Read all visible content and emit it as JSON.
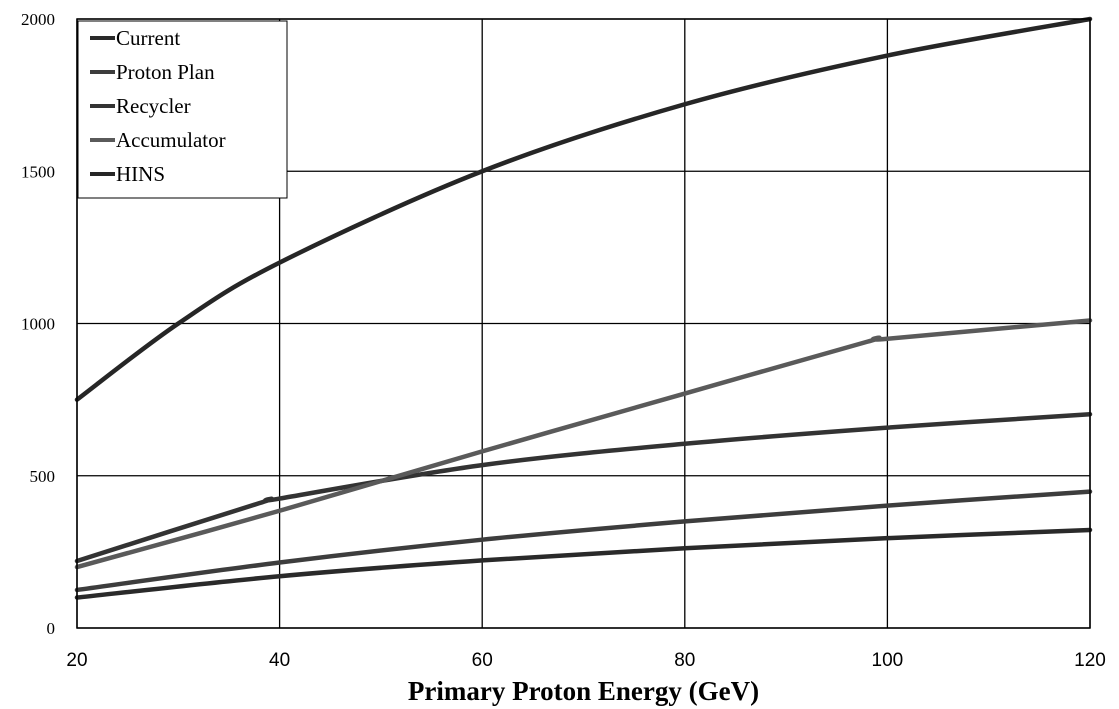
{
  "chart_data": {
    "type": "line",
    "xlabel": "Primary Proton Energy (GeV)",
    "ylabel": "",
    "xlim": [
      20,
      120
    ],
    "ylim": [
      0,
      2000
    ],
    "x_ticks": [
      "20",
      "40",
      "60",
      "80",
      "100",
      "120"
    ],
    "y_ticks": [
      "0",
      "500",
      "1000",
      "1500",
      "2000"
    ],
    "grid": true,
    "legend_position": "top-left",
    "series": [
      {
        "name": "Current",
        "color": "#2a2a2a",
        "x": [
          20,
          40,
          60,
          80,
          100,
          120
        ],
        "y": [
          100,
          170,
          222,
          262,
          295,
          322
        ]
      },
      {
        "name": "Proton Plan",
        "color": "#3d3d3d",
        "x": [
          20,
          40,
          60,
          80,
          100,
          120
        ],
        "y": [
          125,
          215,
          290,
          350,
          402,
          448
        ]
      },
      {
        "name": "Recycler",
        "color": "#333333",
        "x": [
          20,
          38,
          40,
          60,
          80,
          100,
          120
        ],
        "y": [
          220,
          410,
          425,
          535,
          605,
          658,
          702
        ]
      },
      {
        "name": "Accumulator",
        "color": "#5a5a5a",
        "x": [
          20,
          40,
          60,
          80,
          98,
          100,
          120
        ],
        "y": [
          200,
          385,
          580,
          770,
          940,
          950,
          1010
        ]
      },
      {
        "name": "HINS",
        "color": "#262626",
        "x": [
          20,
          30,
          40,
          60,
          80,
          100,
          120
        ],
        "y": [
          750,
          1000,
          1200,
          1500,
          1720,
          1880,
          2000
        ]
      }
    ]
  }
}
